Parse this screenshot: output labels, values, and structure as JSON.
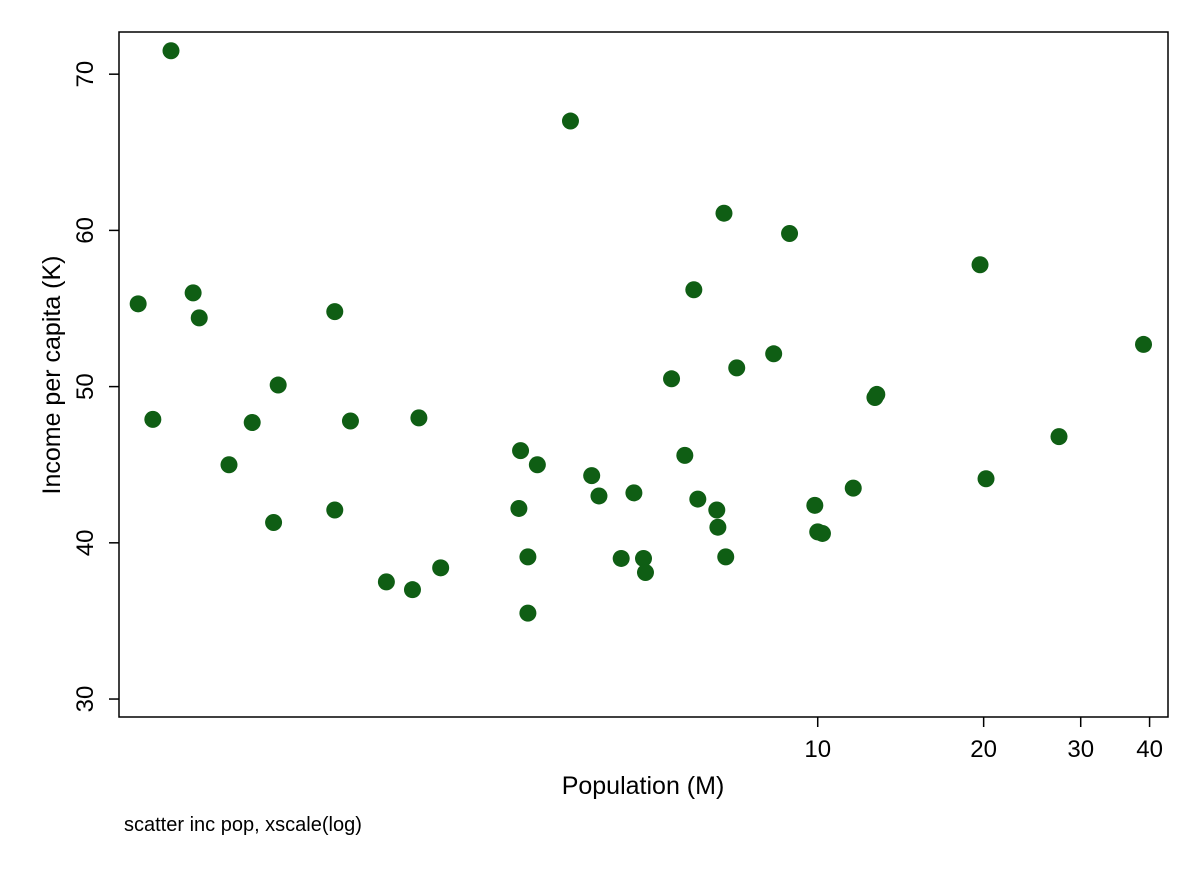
{
  "chart_data": {
    "type": "scatter",
    "title": "",
    "xlabel": "Population (M)",
    "ylabel": "Income per capita (K)",
    "xscale": "log",
    "xlim": [
      0.54,
      43.2
    ],
    "ylim": [
      28.85,
      72.7
    ],
    "xticks": [
      10,
      20,
      30,
      40
    ],
    "xtick_labels": [
      "10",
      "20",
      "30",
      "40"
    ],
    "yticks": [
      30,
      40,
      50,
      60,
      70
    ],
    "ytick_labels": [
      "30",
      "40",
      "50",
      "60",
      "70"
    ],
    "grid": false,
    "marker_color": "#0f5e14",
    "points": [
      [
        0.585,
        55.3
      ],
      [
        0.622,
        47.9
      ],
      [
        0.671,
        71.5
      ],
      [
        0.736,
        56.0
      ],
      [
        0.755,
        54.4
      ],
      [
        0.855,
        45.0
      ],
      [
        0.942,
        47.7
      ],
      [
        1.03,
        41.3
      ],
      [
        1.05,
        50.1
      ],
      [
        1.33,
        54.8
      ],
      [
        1.33,
        42.1
      ],
      [
        1.42,
        47.8
      ],
      [
        1.65,
        37.5
      ],
      [
        1.84,
        37.0
      ],
      [
        1.89,
        48.0
      ],
      [
        2.07,
        38.4
      ],
      [
        2.87,
        42.2
      ],
      [
        2.89,
        45.9
      ],
      [
        2.98,
        39.1
      ],
      [
        2.98,
        35.5
      ],
      [
        3.1,
        45.0
      ],
      [
        3.56,
        67.0
      ],
      [
        3.89,
        44.3
      ],
      [
        4.01,
        43.0
      ],
      [
        4.4,
        39.0
      ],
      [
        4.64,
        43.2
      ],
      [
        4.83,
        39.0
      ],
      [
        4.87,
        38.1
      ],
      [
        5.43,
        50.5
      ],
      [
        5.74,
        45.6
      ],
      [
        5.96,
        56.2
      ],
      [
        6.06,
        42.8
      ],
      [
        6.56,
        42.1
      ],
      [
        6.59,
        41.0
      ],
      [
        6.76,
        61.1
      ],
      [
        6.81,
        39.1
      ],
      [
        7.13,
        51.2
      ],
      [
        8.32,
        52.1
      ],
      [
        8.89,
        59.8
      ],
      [
        9.88,
        42.4
      ],
      [
        10.0,
        40.7
      ],
      [
        10.2,
        40.6
      ],
      [
        11.6,
        43.5
      ],
      [
        12.7,
        49.3
      ],
      [
        12.8,
        49.5
      ],
      [
        19.7,
        57.8
      ],
      [
        20.2,
        44.1
      ],
      [
        27.4,
        46.8
      ],
      [
        39.0,
        52.7
      ]
    ],
    "note": "scatter inc pop, xscale(log)"
  }
}
